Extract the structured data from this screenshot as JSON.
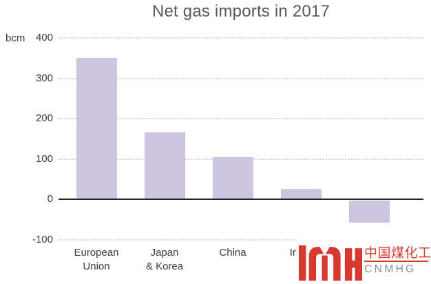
{
  "chart_data": {
    "type": "bar",
    "title": "Net gas imports in 2017",
    "ylabel": "bcm",
    "categories": [
      "European\nUnion",
      "Japan\n& Korea",
      "China",
      "India",
      ""
    ],
    "values": [
      350,
      165,
      105,
      25,
      -55
    ],
    "ylim": [
      -100,
      400
    ],
    "yticks": [
      400,
      300,
      200,
      100,
      0,
      -100
    ],
    "grid": "horizontal-dotted",
    "legend": "none",
    "bar_color": "#cdc4df",
    "colors": {
      "title": "#595959",
      "axis_text": "#3b3b3b",
      "gridline": "#d2d2d2",
      "zero_line": "#262626"
    }
  },
  "watermark": {
    "monogram": "MYH",
    "chinese_text": "中国煤化工",
    "latin_text": "CNMHG",
    "colors": {
      "red": "#d6392e",
      "gray": "#8d9296"
    }
  }
}
